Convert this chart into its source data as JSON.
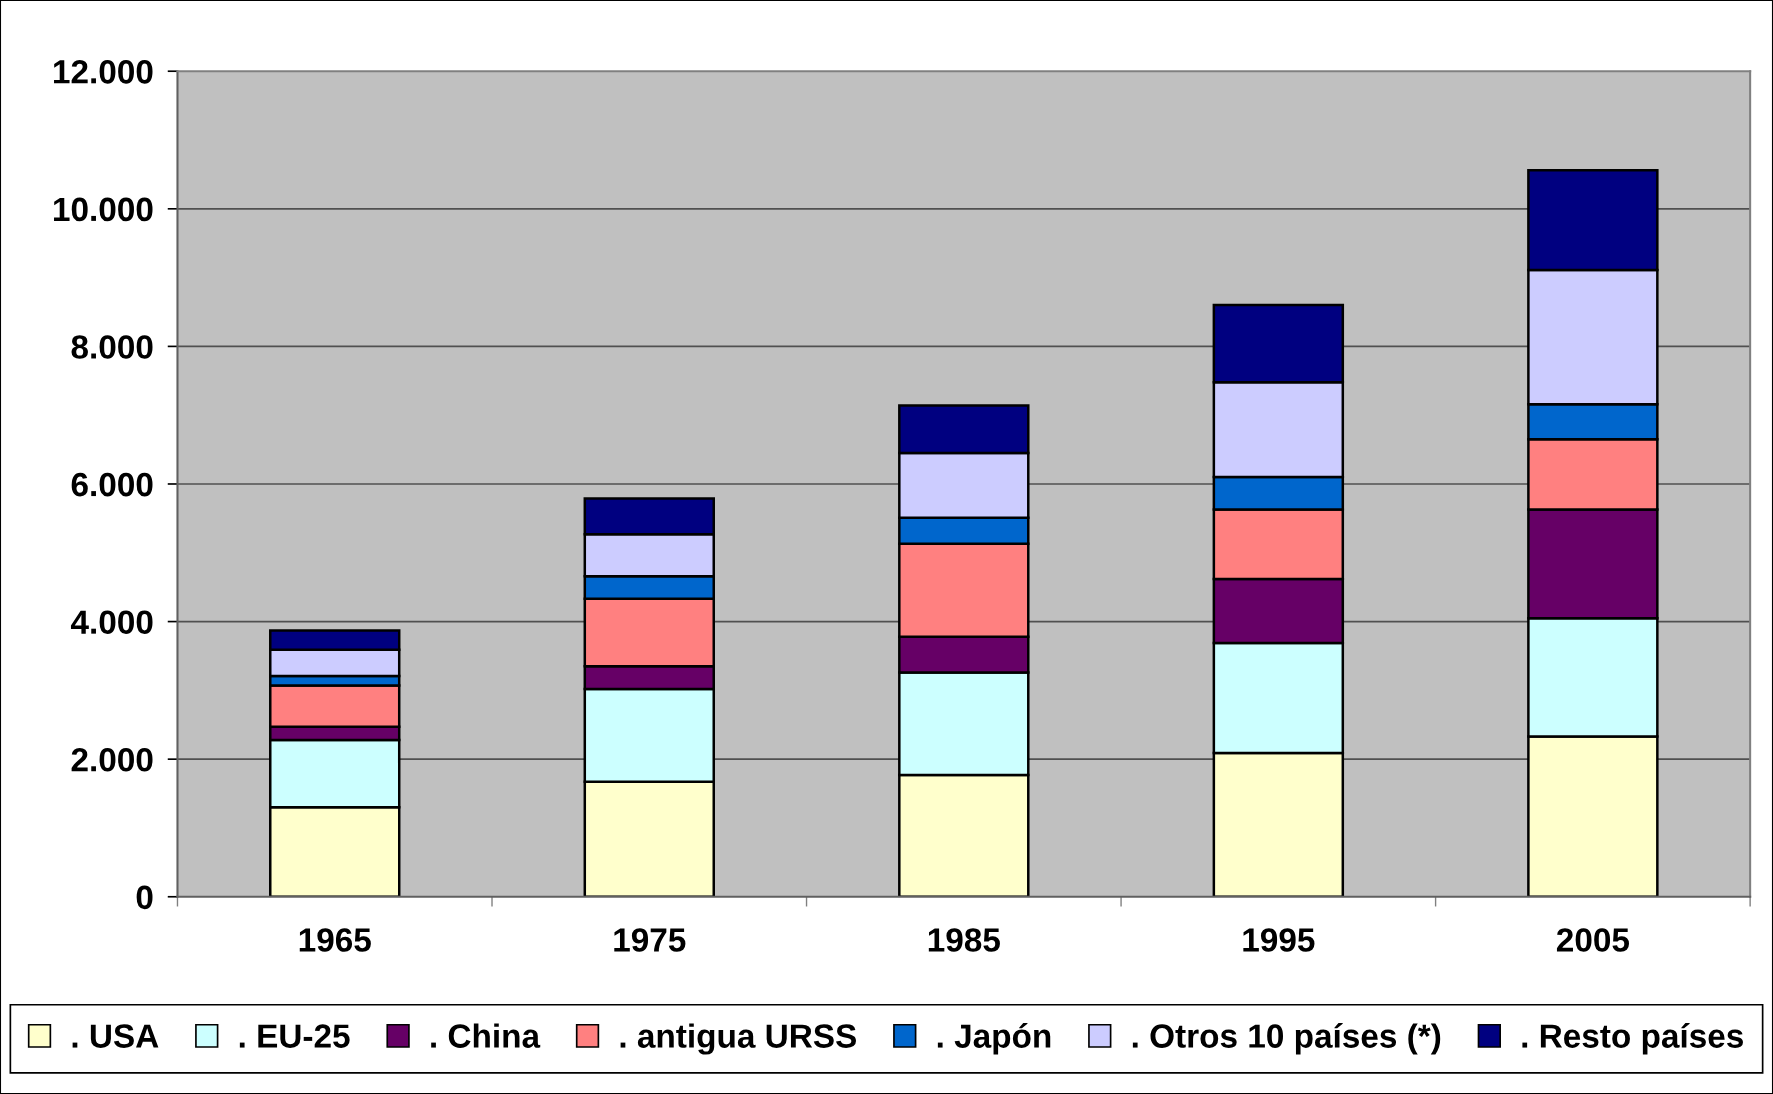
{
  "chart_data": {
    "type": "bar",
    "stacked": true,
    "categories": [
      "1965",
      "1975",
      "1985",
      "1995",
      "2005"
    ],
    "series": [
      {
        "name": ". USA",
        "color": "#ffffcc",
        "values": [
          1300,
          1670,
          1770,
          2090,
          2330
        ]
      },
      {
        "name": ". EU-25",
        "color": "#ccffff",
        "values": [
          980,
          1350,
          1490,
          1600,
          1720
        ]
      },
      {
        "name": ". China",
        "color": "#660066",
        "values": [
          190,
          330,
          520,
          930,
          1580
        ]
      },
      {
        "name": ". antigua URSS",
        "color": "#ff8080",
        "values": [
          600,
          980,
          1350,
          1010,
          1020
        ]
      },
      {
        "name": ". Japón",
        "color": "#0066cc",
        "values": [
          140,
          330,
          380,
          470,
          510
        ]
      },
      {
        "name": ". Otros 10 países (*)",
        "color": "#ccccff",
        "values": [
          380,
          610,
          940,
          1380,
          1950
        ]
      },
      {
        "name": ". Resto países",
        "color": "#000080",
        "values": [
          280,
          520,
          690,
          1120,
          1450
        ]
      }
    ],
    "ylim": [
      0,
      12000
    ],
    "yticks": [
      0,
      {
        "value": 2000,
        "label": "2.000"
      },
      {
        "value": 4000,
        "label": "4.000"
      },
      {
        "value": 6000,
        "label": "6.000"
      },
      {
        "value": 8000,
        "label": "8.000"
      },
      {
        "value": 10000,
        "label": "10.000"
      },
      {
        "value": 12000,
        "label": "12.000"
      }
    ],
    "grid": "y",
    "legend": "bottom"
  }
}
